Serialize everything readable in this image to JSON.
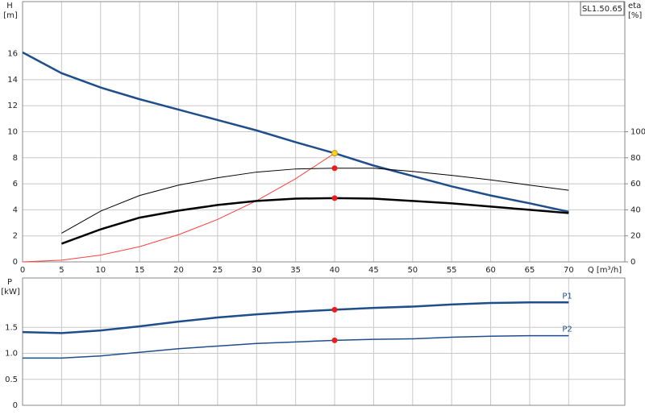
{
  "chart_data": [
    {
      "type": "line",
      "annotation": "SL1.50.65",
      "ylabel": "H",
      "ylabel_unit": "[m]",
      "y2label": "eta",
      "y2label_unit": "[%]",
      "xlabel": "Q [m³/h]",
      "xlim": [
        0,
        77.2
      ],
      "xticks": [
        0,
        5,
        10,
        15,
        20,
        25,
        30,
        35,
        40,
        45,
        50,
        55,
        60,
        65,
        70
      ],
      "show_xtick_labels": true,
      "ylim": [
        0,
        20
      ],
      "yticks": [
        0,
        2,
        4,
        6,
        8,
        10,
        12,
        14,
        16
      ],
      "y2lim": [
        0,
        200
      ],
      "y2ticks": [
        0,
        20,
        40,
        60,
        80,
        100
      ],
      "grid": true,
      "series": [
        {
          "color": "#1f4e8c",
          "width": 2.5,
          "x": [
            0,
            5,
            10,
            15,
            20,
            25,
            30,
            35,
            40,
            45,
            50,
            55,
            60,
            65,
            70
          ],
          "values": [
            16.1,
            14.5,
            13.4,
            12.5,
            11.7,
            10.9,
            10.1,
            9.2,
            8.35,
            7.4,
            6.6,
            5.8,
            5.1,
            4.5,
            3.85
          ]
        },
        {
          "color": "#ff4040",
          "width": 1,
          "x": [
            0,
            5,
            10,
            15,
            20,
            25,
            30,
            35,
            40
          ],
          "values": [
            0,
            0.13,
            0.52,
            1.17,
            2.09,
            3.26,
            4.7,
            6.39,
            8.35
          ]
        },
        {
          "color": "#000000",
          "width": 1,
          "axis": "y2",
          "x": [
            5,
            10,
            15,
            20,
            25,
            30,
            35,
            40,
            45,
            50,
            55,
            60,
            65,
            70
          ],
          "values": [
            22,
            39,
            51,
            59,
            64.6,
            69,
            71.4,
            72,
            72,
            69.5,
            66.5,
            63,
            59,
            55
          ]
        },
        {
          "color": "#000000",
          "width": 2.5,
          "axis": "y2",
          "x": [
            5,
            10,
            15,
            20,
            25,
            30,
            35,
            40,
            45,
            50,
            55,
            60,
            65,
            70
          ],
          "values": [
            14,
            25,
            34,
            39.4,
            43.7,
            46.8,
            48.6,
            49,
            48.6,
            46.8,
            45,
            42.5,
            40,
            37.5
          ]
        }
      ],
      "markers": [
        {
          "x": 40,
          "y": 8.35,
          "color": "#ffd21f"
        },
        {
          "x": 40,
          "y": 72,
          "color": "#ee1c1c",
          "axis": "y2"
        },
        {
          "x": 40,
          "y": 49,
          "color": "#ee1c1c",
          "axis": "y2"
        }
      ]
    },
    {
      "type": "line",
      "ylabel": "P",
      "ylabel_unit": "[kW]",
      "xlim": [
        0,
        77.2
      ],
      "xticks": [
        0,
        5,
        10,
        15,
        20,
        25,
        30,
        35,
        40,
        45,
        50,
        55,
        60,
        65,
        70
      ],
      "show_xtick_labels": false,
      "ylim": [
        0,
        2.45
      ],
      "yticks": [
        0,
        0.5,
        {
          "value": 1,
          "label": "1.0"
        },
        1.5
      ],
      "grid": true,
      "series": [
        {
          "name": "P1",
          "color": "#1f4e8c",
          "width": 2.5,
          "x": [
            0,
            5,
            10,
            15,
            20,
            25,
            30,
            35,
            40,
            45,
            50,
            55,
            60,
            65,
            70
          ],
          "values": [
            1.41,
            1.39,
            1.44,
            1.52,
            1.61,
            1.69,
            1.75,
            1.8,
            1.84,
            1.875,
            1.9,
            1.94,
            1.97,
            1.98,
            1.98
          ]
        },
        {
          "name": "P2",
          "color": "#1f4e8c",
          "width": 1.5,
          "x": [
            0,
            5,
            10,
            15,
            20,
            25,
            30,
            35,
            40,
            45,
            50,
            55,
            60,
            65,
            70
          ],
          "values": [
            0.91,
            0.91,
            0.95,
            1.02,
            1.09,
            1.14,
            1.19,
            1.22,
            1.25,
            1.27,
            1.28,
            1.31,
            1.33,
            1.34,
            1.34
          ]
        }
      ],
      "markers": [
        {
          "x": 40,
          "y": 1.84,
          "color": "#ee1c1c"
        },
        {
          "x": 40,
          "y": 1.25,
          "color": "#ee1c1c"
        }
      ]
    }
  ]
}
